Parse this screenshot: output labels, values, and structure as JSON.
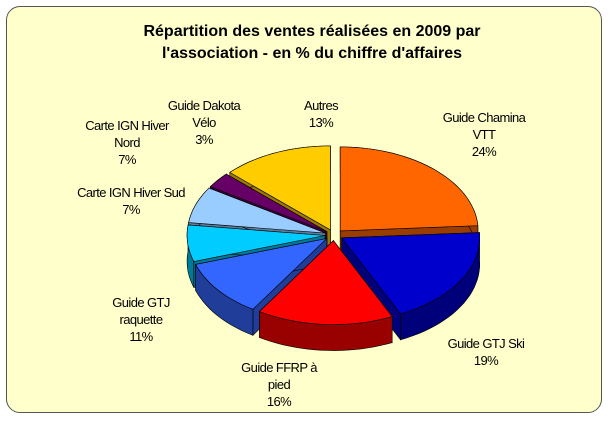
{
  "chart_data": {
    "type": "pie3d",
    "title": "Répartition des ventes réalisées en 2009 par l'association - en % du chiffre d'affaires",
    "categories": [
      "Guide Chamina VTT",
      "Guide GTJ Ski",
      "Guide FFRP à pied",
      "Guide GTJ raquette",
      "Carte IGN Hiver Sud",
      "Carte IGN Hiver Nord",
      "Guide Dakota Vélo",
      "Autres"
    ],
    "values": [
      24,
      19,
      16,
      11,
      7,
      7,
      3,
      13
    ],
    "value_labels": [
      "24%",
      "19%",
      "16%",
      "11%",
      "7%",
      "7%",
      "3%",
      "13%"
    ],
    "colors": [
      "#ff6600",
      "#0000cc",
      "#ff0000",
      "#3366ff",
      "#00ccff",
      "#99ccff",
      "#660066",
      "#ffcc00"
    ]
  }
}
